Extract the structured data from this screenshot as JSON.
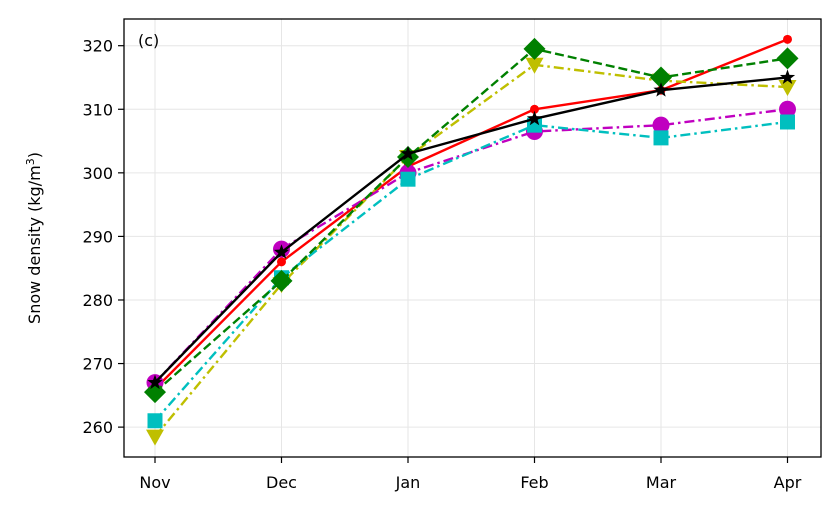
{
  "chart_data": {
    "type": "line",
    "panel_label": "(c)",
    "title": "",
    "xlabel": "",
    "ylabel": "Snow density (kg/m",
    "ylabel_sup": "3",
    "ylabel_close": ")",
    "categories": [
      "Nov",
      "Dec",
      "Jan",
      "Feb",
      "Mar",
      "Apr"
    ],
    "yticks": [
      260,
      270,
      280,
      290,
      300,
      310,
      320
    ],
    "ylim": [
      255.3,
      324.2
    ],
    "grid": true,
    "legend": "none",
    "series": [
      {
        "color": "#ff0000",
        "linestyle": "solid",
        "marker": "dot",
        "values": [
          266,
          286,
          301,
          310,
          313,
          321
        ]
      },
      {
        "color": "#bfbf00",
        "linestyle": "dashdot",
        "marker": "triangle-down",
        "values": [
          258.5,
          282.5,
          302.5,
          317,
          314.5,
          313.5
        ]
      },
      {
        "color": "#c000c0",
        "linestyle": "dashdot",
        "marker": "circle",
        "values": [
          267,
          288,
          300,
          306.5,
          307.5,
          310
        ]
      },
      {
        "color": "#00bfbf",
        "linestyle": "dashdot",
        "marker": "square",
        "values": [
          261,
          283.5,
          299,
          307.5,
          305.5,
          308
        ]
      },
      {
        "color": "#008000",
        "linestyle": "dashed",
        "marker": "diamond",
        "values": [
          265.5,
          283,
          302.5,
          319.5,
          315,
          318
        ]
      },
      {
        "color": "#000000",
        "linestyle": "solid",
        "marker": "star",
        "values": [
          267,
          287.5,
          303,
          308.5,
          313,
          315
        ]
      }
    ]
  }
}
